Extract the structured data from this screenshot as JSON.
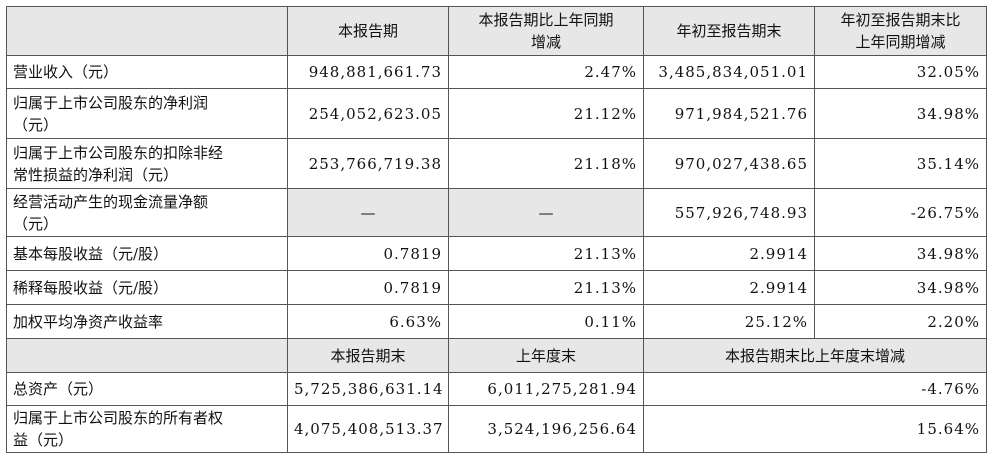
{
  "table": {
    "header": [
      "本报告期",
      "本报告期比上年同期增减",
      "年初至报告期末",
      "年初至报告期末比上年同期增减"
    ],
    "rows": [
      [
        "营业收入（元）",
        "948,881,661.73",
        "2.47%",
        "3,485,834,051.01",
        "32.05%"
      ],
      [
        "归属于上市公司股东的净利润（元）",
        "254,052,623.05",
        "21.12%",
        "971,984,521.76",
        "34.98%"
      ],
      [
        "归属于上市公司股东的扣除非经常性损益的净利润（元）",
        "253,766,719.38",
        "21.18%",
        "970,027,438.65",
        "35.14%"
      ],
      [
        "经营活动产生的现金流量净额（元）",
        "—",
        "—",
        "557,926,748.93",
        "-26.75%"
      ],
      [
        "基本每股收益（元/股）",
        "0.7819",
        "21.13%",
        "2.9914",
        "34.98%"
      ],
      [
        "稀释每股收益（元/股）",
        "0.7819",
        "21.13%",
        "2.9914",
        "34.98%"
      ],
      [
        "加权平均净资产收益率",
        "6.63%",
        "0.11%",
        "25.12%",
        "2.20%"
      ]
    ],
    "header2": [
      "本报告期末",
      "上年度末",
      "本报告期末比上年度末增减"
    ],
    "rows2": [
      [
        "总资产（元）",
        "5,725,386,631.14",
        "6,011,275,281.94",
        "-4.76%"
      ],
      [
        "归属于上市公司股东的所有者权益（元）",
        "4,075,408,513.37",
        "3,524,196,256.64",
        "15.64%"
      ]
    ]
  }
}
